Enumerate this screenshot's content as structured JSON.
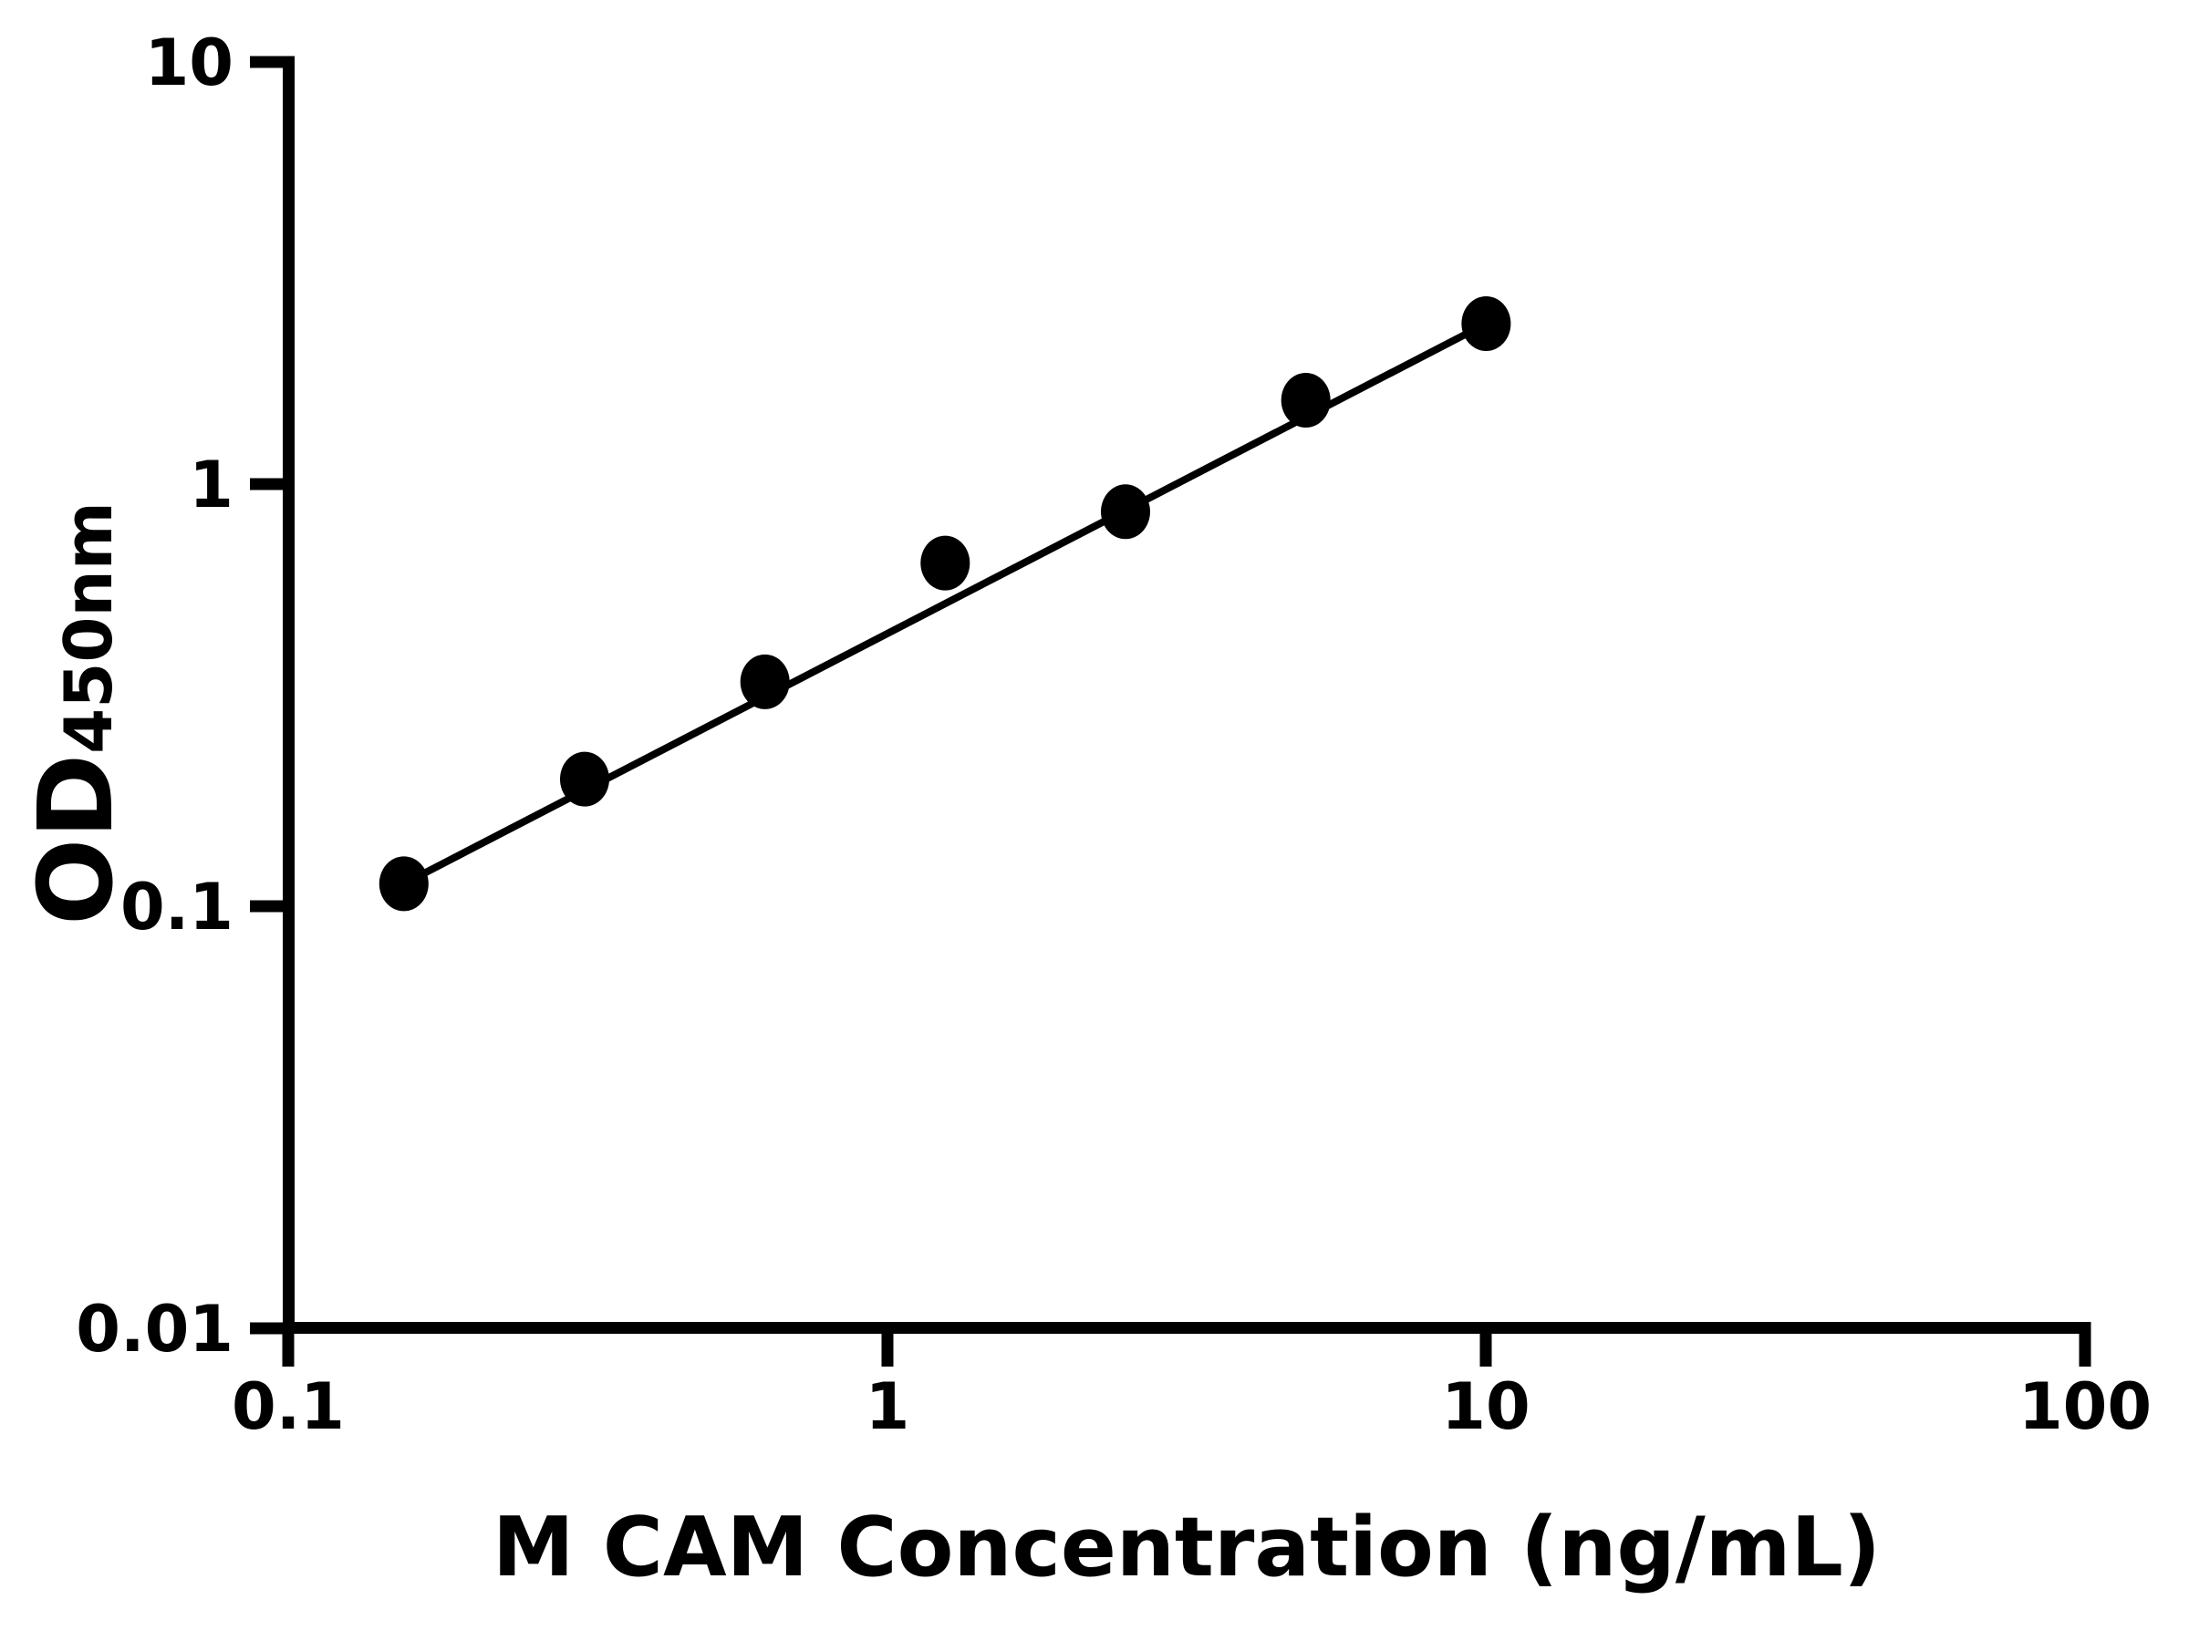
{
  "chart_data": {
    "type": "scatter",
    "title": "",
    "xlabel": "M CAM Concentration (ng/mL)",
    "ylabel": "OD450nm",
    "ylabel_main": "OD",
    "ylabel_sub": "450nm",
    "x_scale": "log",
    "y_scale": "log",
    "xlim": [
      0.1,
      100
    ],
    "ylim": [
      0.01,
      10
    ],
    "x_tick_values": [
      0.1,
      1,
      10,
      100
    ],
    "x_tick_labels": [
      "0.1",
      "1",
      "10",
      "100"
    ],
    "y_tick_values": [
      10,
      1,
      0.1,
      0.01
    ],
    "y_tick_labels": [
      "10",
      "1",
      "0.1",
      "0.01"
    ],
    "grid": false,
    "legend": false,
    "marker_shape": "circle",
    "marker_color": "#000000",
    "line_color": "#000000",
    "points": [
      {
        "x": 0.156,
        "y": 0.113
      },
      {
        "x": 0.3125,
        "y": 0.2
      },
      {
        "x": 0.625,
        "y": 0.34
      },
      {
        "x": 1.25,
        "y": 0.65
      },
      {
        "x": 2.5,
        "y": 0.86
      },
      {
        "x": 5,
        "y": 1.58
      },
      {
        "x": 10,
        "y": 2.4
      }
    ],
    "trend_line": {
      "x1": 0.156,
      "y1": 0.113,
      "x2": 10,
      "y2": 2.4
    }
  }
}
